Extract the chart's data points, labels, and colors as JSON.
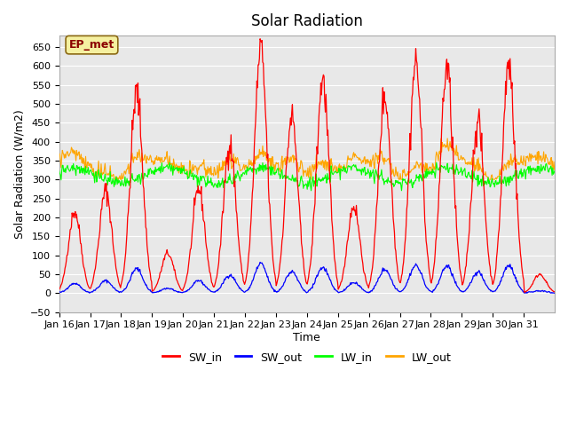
{
  "title": "Solar Radiation",
  "xlabel": "Time",
  "ylabel": "Solar Radiation (W/m2)",
  "ylim": [
    -50,
    680
  ],
  "yticks": [
    -50,
    0,
    50,
    100,
    150,
    200,
    250,
    300,
    350,
    400,
    450,
    500,
    550,
    600,
    650
  ],
  "x_tick_labels": [
    "Jan 16",
    "Jan 17",
    "Jan 18",
    "Jan 19",
    "Jan 20",
    "Jan 21",
    "Jan 22",
    "Jan 23",
    "Jan 24",
    "Jan 25",
    "Jan 26",
    "Jan 27",
    "Jan 28",
    "Jan 29",
    "Jan 30",
    "Jan 31"
  ],
  "bg_color": "#e8e8e8",
  "legend_label": "EP_met",
  "legend_box_color": "#f5f0a0",
  "legend_box_edge": "#8b6914",
  "colors": {
    "SW_in": "#ff0000",
    "SW_out": "#0000ff",
    "LW_in": "#00ff00",
    "LW_out": "#ffa500"
  },
  "n_days": 16,
  "points_per_day": 48
}
